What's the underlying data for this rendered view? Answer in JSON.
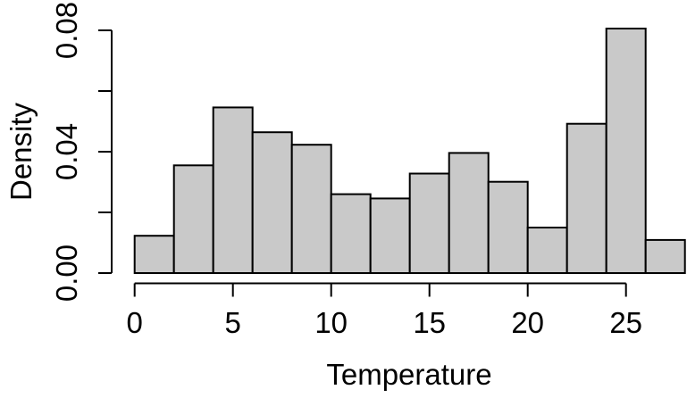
{
  "figure": {
    "background": "#ffffff"
  },
  "chart_data": {
    "type": "bar",
    "subtype": "histogram",
    "title": "",
    "xlabel": "Temperature",
    "ylabel": "Density",
    "bin_width": 2,
    "bin_edges": [
      0,
      2,
      4,
      6,
      8,
      10,
      12,
      14,
      16,
      18,
      20,
      22,
      24,
      26,
      28
    ],
    "values": [
      0.0123,
      0.0355,
      0.0546,
      0.0464,
      0.0423,
      0.026,
      0.0246,
      0.0328,
      0.0396,
      0.0301,
      0.015,
      0.0492,
      0.0806,
      0.0109
    ],
    "x_ticks": [
      0,
      5,
      10,
      15,
      20,
      25
    ],
    "x_tick_labels": [
      "0",
      "5",
      "10",
      "15",
      "20",
      "25"
    ],
    "y_ticks": [
      0,
      0.02,
      0.04,
      0.06,
      0.08
    ],
    "y_tick_labels": [
      "0.00",
      "",
      "0.04",
      "",
      "0.08"
    ],
    "xlim": [
      0,
      28
    ],
    "ylim": [
      0,
      0.08
    ],
    "grid": false,
    "legend": "none",
    "bar_fill": "#c9c9c9",
    "bar_stroke": "#000000",
    "axis_color": "#000000"
  }
}
